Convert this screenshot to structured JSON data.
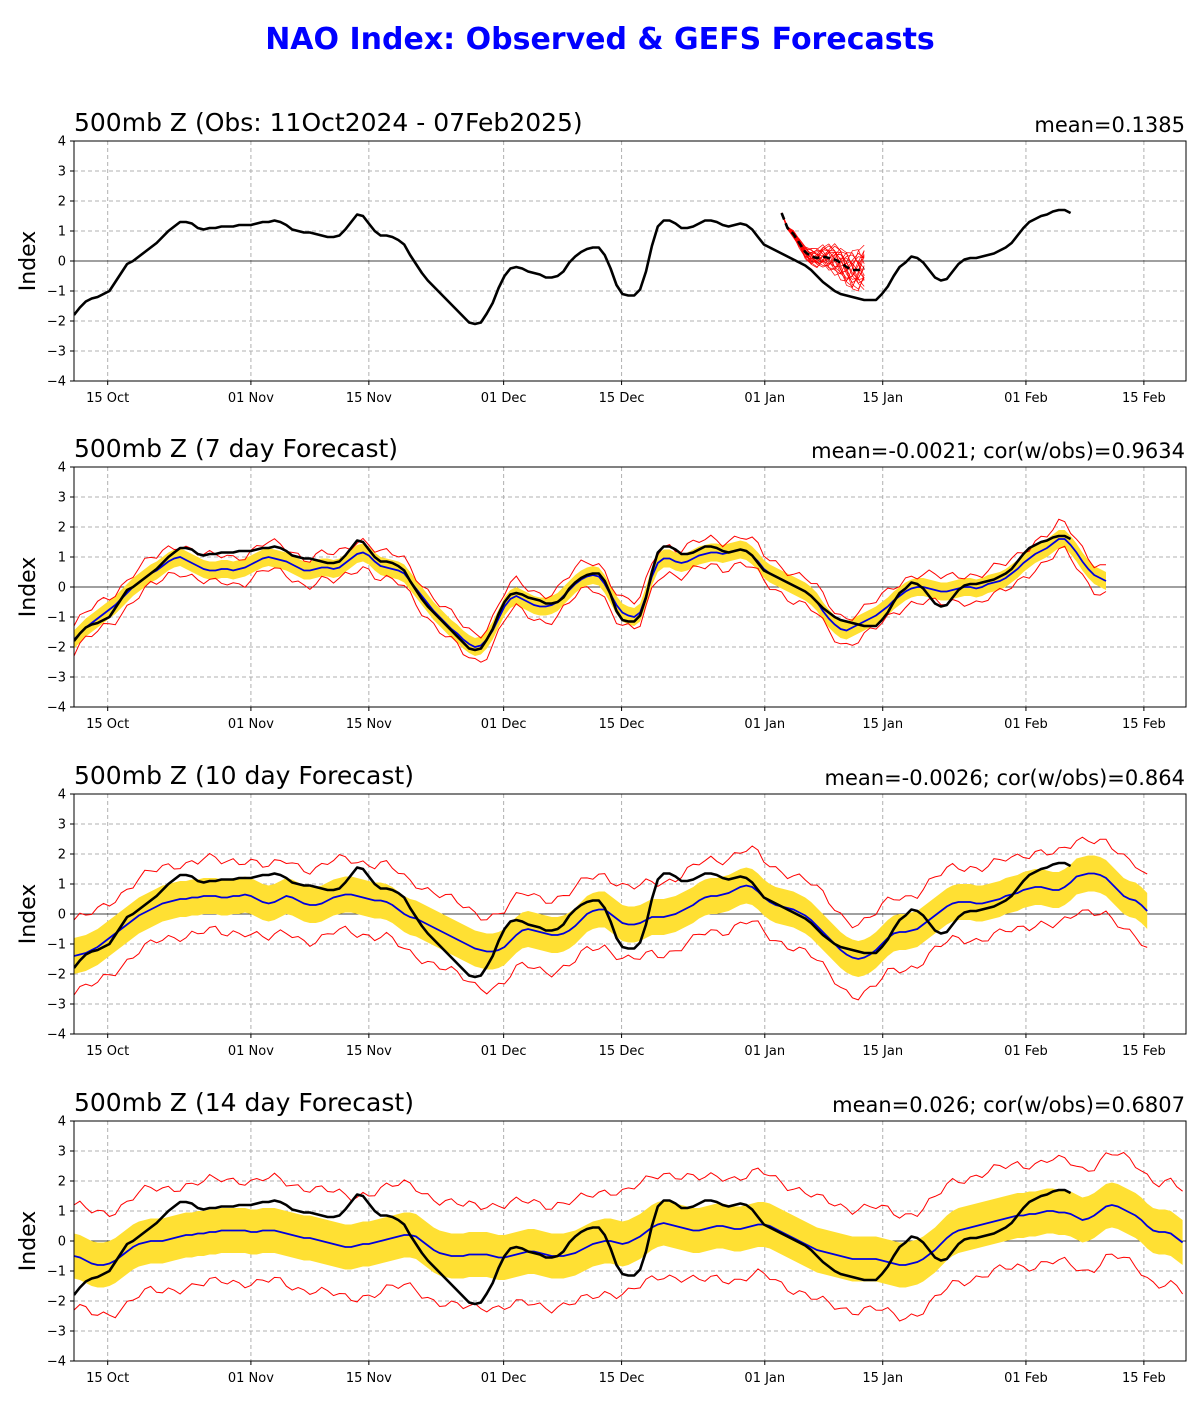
{
  "title": "NAO Index: Observed & GEFS Forecasts",
  "colors": {
    "title": "#0000ff",
    "observed": "#000000",
    "ensemble_mean": "#0000dd",
    "spread_band": "#ffe033",
    "ensemble_bounds": "#ff0000",
    "grid": "#b0b0b0"
  },
  "chart_data": [
    {
      "type": "line",
      "title": "500mb Z (Obs: 11Oct2024 - 07Feb2025)",
      "stats": "mean=0.1385",
      "ylabel": "Index",
      "yticks": [
        "4",
        "3",
        "2",
        "1",
        "0",
        "−1",
        "−2",
        "−3",
        "−4"
      ],
      "xticks": [
        "15 Oct",
        "01 Nov",
        "15 Nov",
        "01 Dec",
        "15 Dec",
        "01 Jan",
        "15 Jan",
        "01 Feb",
        "15 Feb"
      ],
      "x_start": "2024-10-11",
      "ylim": [
        -4,
        4
      ],
      "grid": true,
      "series": [
        {
          "role": "observed",
          "style": "black-solid",
          "values": [
            -1.8,
            -1.55,
            -1.35,
            -1.25,
            -1.2,
            -1.1,
            -1.0,
            -0.7,
            -0.4,
            -0.1,
            0.0,
            0.15,
            0.3,
            0.45,
            0.6,
            0.8,
            1.0,
            1.15,
            1.3,
            1.3,
            1.25,
            1.1,
            1.05,
            1.1,
            1.1,
            1.15,
            1.15,
            1.15,
            1.2,
            1.2,
            1.2,
            1.25,
            1.3,
            1.3,
            1.35,
            1.3,
            1.2,
            1.05,
            1.0,
            0.95,
            0.95,
            0.9,
            0.85,
            0.8,
            0.8,
            0.85,
            1.05,
            1.3,
            1.55,
            1.5,
            1.25,
            1.0,
            0.85,
            0.85,
            0.8,
            0.7,
            0.55,
            0.2,
            -0.1,
            -0.4,
            -0.65,
            -0.85,
            -1.05,
            -1.25,
            -1.45,
            -1.65,
            -1.85,
            -2.05,
            -2.1,
            -2.05,
            -1.75,
            -1.4,
            -0.9,
            -0.5,
            -0.25,
            -0.2,
            -0.25,
            -0.35,
            -0.4,
            -0.45,
            -0.55,
            -0.55,
            -0.5,
            -0.35,
            -0.05,
            0.15,
            0.3,
            0.4,
            0.45,
            0.45,
            0.2,
            -0.25,
            -0.8,
            -1.1,
            -1.15,
            -1.15,
            -0.95,
            -0.35,
            0.5,
            1.15,
            1.35,
            1.35,
            1.25,
            1.1,
            1.1,
            1.15,
            1.25,
            1.35,
            1.35,
            1.3,
            1.2,
            1.15,
            1.2,
            1.25,
            1.2,
            1.05,
            0.8,
            0.55,
            0.45,
            0.35,
            0.25,
            0.15,
            0.05,
            -0.05,
            -0.15,
            -0.3,
            -0.5,
            -0.7,
            -0.85,
            -1.0,
            -1.1,
            -1.15,
            -1.2,
            -1.25,
            -1.3,
            -1.3,
            -1.3,
            -1.1,
            -0.85,
            -0.5,
            -0.2,
            -0.05,
            0.15,
            0.1,
            -0.05,
            -0.3,
            -0.55,
            -0.65,
            -0.6,
            -0.35,
            -0.1,
            0.05,
            0.1,
            0.1,
            0.15,
            0.2,
            0.25,
            0.35,
            0.45,
            0.6,
            0.85,
            1.1,
            1.3,
            1.4,
            1.5,
            1.55,
            1.65,
            1.7,
            1.7,
            1.6
          ]
        },
        {
          "role": "forecast-mean",
          "style": "black-dashed",
          "x_offset": 120,
          "values": [
            1.6,
            1.1,
            0.9,
            0.6,
            0.3,
            0.15,
            0.1,
            0.15,
            0.1,
            0.05,
            -0.05,
            -0.2,
            -0.3,
            -0.3,
            -0.25
          ]
        }
      ]
    },
    {
      "type": "line",
      "title": "500mb Z (7 day Forecast)",
      "stats": "mean=-0.0021; cor(w/obs)=0.9634",
      "ylabel": "Index",
      "yticks": [
        "4",
        "3",
        "2",
        "1",
        "0",
        "−1",
        "−2",
        "−3",
        "−4"
      ],
      "xticks": [
        "15 Oct",
        "01 Nov",
        "15 Nov",
        "01 Dec",
        "15 Dec",
        "01 Jan",
        "15 Jan",
        "01 Feb",
        "15 Feb"
      ],
      "x_start": "2024-10-11",
      "ylim": [
        -4,
        4
      ],
      "grid": true,
      "ensemble": {
        "mean": [
          -1.75,
          -1.55,
          -1.35,
          -1.2,
          -1.05,
          -0.9,
          -0.75,
          -0.6,
          -0.4,
          -0.2,
          0.0,
          0.15,
          0.3,
          0.45,
          0.55,
          0.7,
          0.85,
          0.95,
          1.0,
          0.9,
          0.8,
          0.7,
          0.6,
          0.55,
          0.55,
          0.6,
          0.6,
          0.55,
          0.6,
          0.65,
          0.75,
          0.85,
          0.95,
          1.0,
          0.95,
          0.9,
          0.85,
          0.75,
          0.65,
          0.55,
          0.55,
          0.6,
          0.65,
          0.65,
          0.6,
          0.65,
          0.8,
          0.95,
          1.1,
          1.15,
          1.05,
          0.85,
          0.7,
          0.65,
          0.6,
          0.55,
          0.45,
          0.2,
          -0.05,
          -0.3,
          -0.55,
          -0.8,
          -1.0,
          -1.2,
          -1.4,
          -1.55,
          -1.75,
          -1.9,
          -2.0,
          -1.95,
          -1.75,
          -1.45,
          -1.05,
          -0.65,
          -0.4,
          -0.3,
          -0.4,
          -0.5,
          -0.6,
          -0.65,
          -0.65,
          -0.6,
          -0.5,
          -0.3,
          -0.1,
          0.1,
          0.25,
          0.35,
          0.4,
          0.35,
          0.1,
          -0.25,
          -0.6,
          -0.85,
          -0.95,
          -1.0,
          -0.85,
          -0.3,
          0.35,
          0.8,
          0.95,
          0.95,
          0.85,
          0.8,
          0.85,
          0.95,
          1.05,
          1.1,
          1.15,
          1.15,
          1.1,
          1.15,
          1.2,
          1.25,
          1.2,
          1.05,
          0.85,
          0.6,
          0.45,
          0.35,
          0.25,
          0.15,
          0.05,
          -0.05,
          -0.15,
          -0.3,
          -0.5,
          -0.8,
          -1.05,
          -1.25,
          -1.4,
          -1.45,
          -1.35,
          -1.25,
          -1.15,
          -1.05,
          -0.95,
          -0.8,
          -0.65,
          -0.45,
          -0.3,
          -0.15,
          -0.05,
          0.0,
          0.0,
          -0.05,
          -0.1,
          -0.15,
          -0.15,
          -0.1,
          -0.05,
          0.0,
          0.0,
          -0.05,
          0.0,
          0.1,
          0.15,
          0.2,
          0.3,
          0.45,
          0.6,
          0.8,
          0.95,
          1.1,
          1.2,
          1.3,
          1.45,
          1.6,
          1.6,
          1.4,
          1.15,
          0.85,
          0.6,
          0.4,
          0.3,
          0.2
        ],
        "band": 0.3,
        "bound": 0.45
      },
      "series": [
        {
          "role": "observed",
          "style": "black-solid",
          "ref": "observed"
        }
      ]
    },
    {
      "type": "line",
      "title": "500mb Z (10 day Forecast)",
      "stats": "mean=-0.0026; cor(w/obs)=0.864",
      "ylabel": "Index",
      "yticks": [
        "4",
        "3",
        "2",
        "1",
        "0",
        "−1",
        "−2",
        "−3",
        "−4"
      ],
      "xticks": [
        "15 Oct",
        "01 Nov",
        "15 Nov",
        "01 Dec",
        "15 Dec",
        "01 Jan",
        "15 Jan",
        "01 Feb",
        "15 Feb"
      ],
      "x_start": "2024-10-11",
      "ylim": [
        -4,
        4
      ],
      "grid": true,
      "ensemble": {
        "mean": [
          -1.4,
          -1.35,
          -1.3,
          -1.2,
          -1.1,
          -0.95,
          -0.8,
          -0.65,
          -0.5,
          -0.35,
          -0.2,
          -0.05,
          0.05,
          0.15,
          0.25,
          0.35,
          0.4,
          0.45,
          0.5,
          0.5,
          0.55,
          0.55,
          0.6,
          0.6,
          0.6,
          0.55,
          0.55,
          0.6,
          0.6,
          0.65,
          0.6,
          0.5,
          0.4,
          0.35,
          0.4,
          0.5,
          0.6,
          0.55,
          0.45,
          0.35,
          0.3,
          0.3,
          0.35,
          0.45,
          0.55,
          0.6,
          0.65,
          0.65,
          0.6,
          0.55,
          0.5,
          0.45,
          0.45,
          0.4,
          0.3,
          0.15,
          0.0,
          -0.1,
          -0.15,
          -0.25,
          -0.35,
          -0.45,
          -0.55,
          -0.65,
          -0.75,
          -0.85,
          -0.95,
          -1.05,
          -1.15,
          -1.2,
          -1.25,
          -1.25,
          -1.2,
          -1.1,
          -0.9,
          -0.7,
          -0.55,
          -0.5,
          -0.55,
          -0.6,
          -0.65,
          -0.7,
          -0.7,
          -0.65,
          -0.55,
          -0.4,
          -0.2,
          0.0,
          0.1,
          0.15,
          0.15,
          0.0,
          -0.15,
          -0.3,
          -0.35,
          -0.35,
          -0.3,
          -0.2,
          -0.1,
          -0.1,
          -0.1,
          -0.05,
          0.0,
          0.1,
          0.2,
          0.3,
          0.45,
          0.55,
          0.6,
          0.6,
          0.65,
          0.7,
          0.8,
          0.9,
          0.95,
          0.9,
          0.75,
          0.55,
          0.4,
          0.3,
          0.25,
          0.2,
          0.15,
          0.05,
          -0.05,
          -0.2,
          -0.4,
          -0.6,
          -0.8,
          -1.0,
          -1.2,
          -1.35,
          -1.45,
          -1.5,
          -1.45,
          -1.35,
          -1.2,
          -1.0,
          -0.8,
          -0.65,
          -0.6,
          -0.6,
          -0.55,
          -0.5,
          -0.35,
          -0.2,
          -0.05,
          0.1,
          0.25,
          0.35,
          0.4,
          0.4,
          0.4,
          0.35,
          0.35,
          0.4,
          0.45,
          0.5,
          0.6,
          0.65,
          0.7,
          0.8,
          0.85,
          0.9,
          0.9,
          0.85,
          0.8,
          0.8,
          0.9,
          1.05,
          1.25,
          1.3,
          1.35,
          1.35,
          1.3,
          1.2,
          1.0,
          0.8,
          0.6,
          0.5,
          0.45,
          0.3,
          0.1
        ],
        "band": 0.6,
        "bound": 1.2
      },
      "series": [
        {
          "role": "observed",
          "style": "black-solid",
          "ref": "observed"
        }
      ]
    },
    {
      "type": "line",
      "title": "500mb Z (14 day Forecast)",
      "stats": "mean=0.026; cor(w/obs)=0.6807",
      "ylabel": "Index",
      "yticks": [
        "4",
        "3",
        "2",
        "1",
        "0",
        "−1",
        "−2",
        "−3",
        "−4"
      ],
      "xticks": [
        "15 Oct",
        "01 Nov",
        "15 Nov",
        "01 Dec",
        "15 Dec",
        "01 Jan",
        "15 Jan",
        "01 Feb",
        "15 Feb"
      ],
      "x_start": "2024-10-11",
      "ylim": [
        -4,
        4
      ],
      "grid": true,
      "ensemble": {
        "mean": [
          -0.5,
          -0.55,
          -0.65,
          -0.75,
          -0.8,
          -0.8,
          -0.75,
          -0.65,
          -0.5,
          -0.35,
          -0.2,
          -0.1,
          -0.05,
          0.0,
          0.0,
          0.0,
          0.05,
          0.1,
          0.15,
          0.2,
          0.2,
          0.25,
          0.25,
          0.3,
          0.3,
          0.35,
          0.35,
          0.35,
          0.35,
          0.35,
          0.3,
          0.3,
          0.35,
          0.35,
          0.35,
          0.3,
          0.25,
          0.2,
          0.15,
          0.1,
          0.1,
          0.05,
          0.0,
          -0.05,
          -0.1,
          -0.15,
          -0.2,
          -0.2,
          -0.15,
          -0.1,
          -0.1,
          -0.05,
          0.0,
          0.05,
          0.1,
          0.15,
          0.2,
          0.2,
          0.15,
          0.0,
          -0.15,
          -0.3,
          -0.4,
          -0.45,
          -0.5,
          -0.5,
          -0.5,
          -0.45,
          -0.45,
          -0.45,
          -0.45,
          -0.5,
          -0.55,
          -0.55,
          -0.5,
          -0.45,
          -0.4,
          -0.35,
          -0.35,
          -0.4,
          -0.45,
          -0.5,
          -0.5,
          -0.5,
          -0.45,
          -0.4,
          -0.3,
          -0.2,
          -0.1,
          -0.05,
          0.0,
          0.0,
          -0.05,
          -0.1,
          -0.05,
          0.05,
          0.15,
          0.3,
          0.45,
          0.55,
          0.6,
          0.55,
          0.5,
          0.45,
          0.4,
          0.35,
          0.35,
          0.4,
          0.45,
          0.5,
          0.5,
          0.45,
          0.4,
          0.4,
          0.45,
          0.5,
          0.55,
          0.55,
          0.5,
          0.4,
          0.3,
          0.2,
          0.1,
          0.0,
          -0.1,
          -0.2,
          -0.3,
          -0.35,
          -0.4,
          -0.45,
          -0.5,
          -0.55,
          -0.6,
          -0.6,
          -0.6,
          -0.6,
          -0.6,
          -0.65,
          -0.7,
          -0.75,
          -0.8,
          -0.8,
          -0.75,
          -0.7,
          -0.6,
          -0.45,
          -0.3,
          -0.1,
          0.1,
          0.25,
          0.35,
          0.4,
          0.45,
          0.5,
          0.55,
          0.6,
          0.65,
          0.7,
          0.75,
          0.8,
          0.85,
          0.85,
          0.9,
          0.9,
          0.95,
          1.0,
          1.0,
          0.95,
          0.95,
          0.9,
          0.8,
          0.7,
          0.75,
          0.85,
          1.0,
          1.15,
          1.2,
          1.15,
          1.05,
          0.95,
          0.85,
          0.7,
          0.5,
          0.35,
          0.3,
          0.3,
          0.25,
          0.1,
          -0.05
        ],
        "band": 0.75,
        "bound": 1.7
      },
      "series": [
        {
          "role": "observed",
          "style": "black-solid",
          "ref": "observed"
        }
      ]
    }
  ]
}
